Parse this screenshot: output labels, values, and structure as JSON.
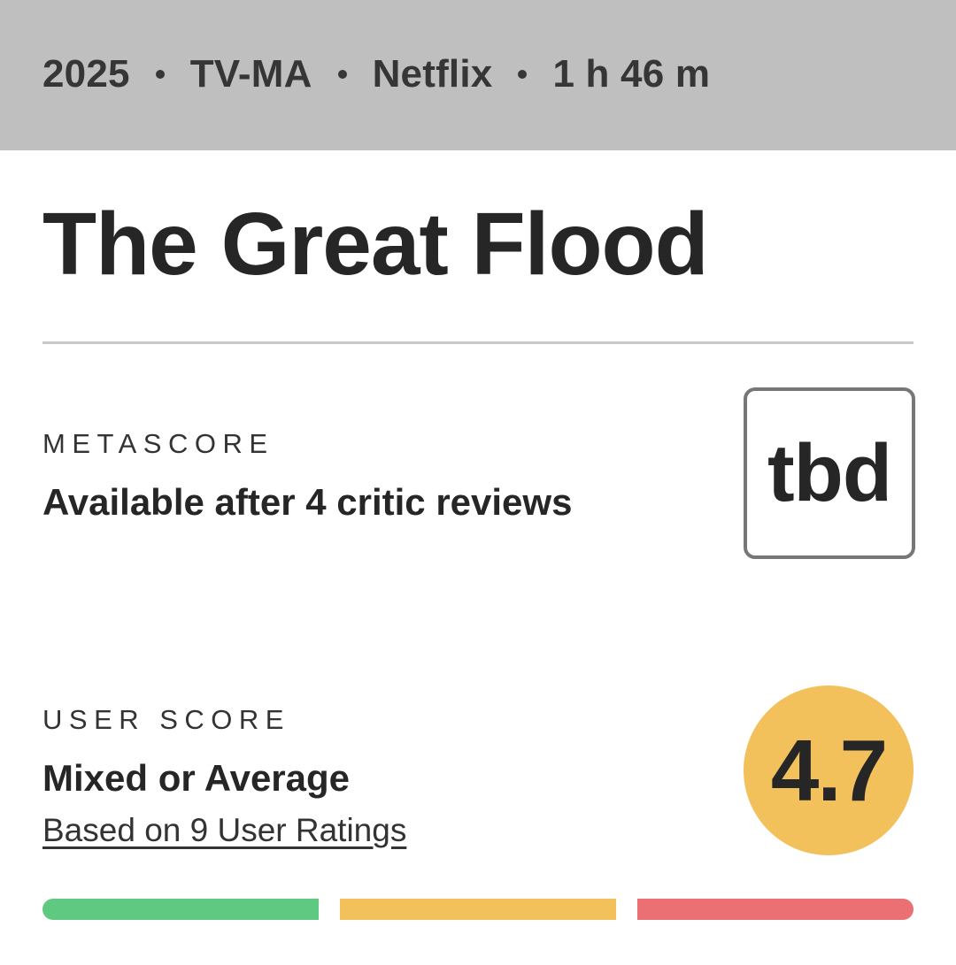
{
  "meta": {
    "year": "2025",
    "rating": "TV-MA",
    "network": "Netflix",
    "runtime": "1 h 46 m"
  },
  "title": "The Great Flood",
  "metascore": {
    "label": "METASCORE",
    "status_text": "Available after 4 critic reviews",
    "score": "tbd"
  },
  "userscore": {
    "label": "USER SCORE",
    "sentiment": "Mixed or Average",
    "ratings_link": "Based on 9 User Ratings",
    "score": "4.7"
  },
  "colors": {
    "header_bg": "#bfbfbf",
    "positive": "#5fc982",
    "mixed": "#f3c15c",
    "negative": "#eb7074"
  }
}
